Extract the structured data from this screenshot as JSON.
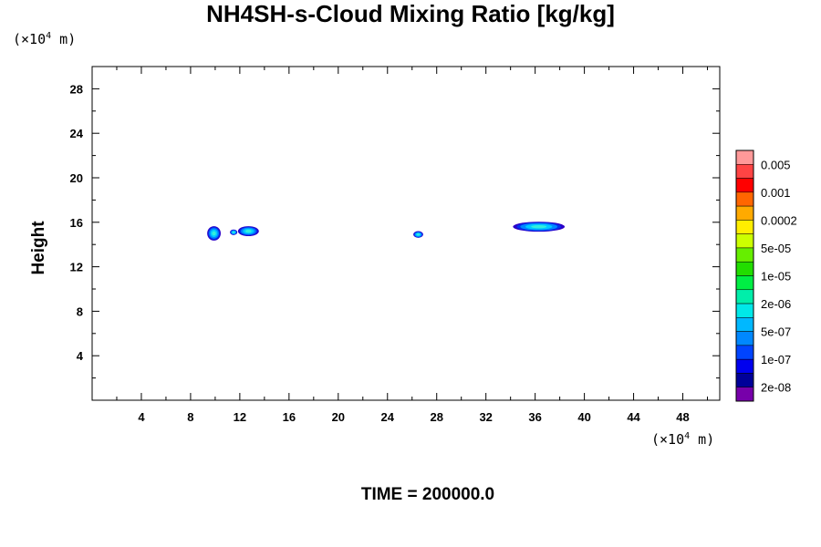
{
  "chart_data": {
    "type": "contour",
    "title": "NH4SH-s-Cloud Mixing Ratio [kg/kg]",
    "ylabel": "Height",
    "x_unit_prefix": "(×10",
    "x_unit_exp": "4",
    "x_unit_suffix": " m)",
    "y_unit_prefix": "(×10",
    "y_unit_exp": "4",
    "y_unit_suffix": " m)",
    "footer": "TIME = 200000.0",
    "xlim": [
      0,
      51
    ],
    "ylim": [
      0,
      30
    ],
    "x_ticks": [
      4,
      8,
      12,
      16,
      20,
      24,
      28,
      32,
      36,
      40,
      44,
      48
    ],
    "y_ticks": [
      4,
      8,
      12,
      16,
      20,
      24,
      28
    ],
    "colorbar": {
      "colors": [
        "#ff9999",
        "#ff4444",
        "#ff0000",
        "#ff6600",
        "#ffaa00",
        "#ffee00",
        "#ccff00",
        "#66ee00",
        "#22dd00",
        "#00ee44",
        "#00eeaa",
        "#00e8e8",
        "#00b8ff",
        "#0088ff",
        "#0044ff",
        "#0000ee",
        "#000099",
        "#7700aa"
      ],
      "labels": [
        "0.005",
        "0.001",
        "0.0002",
        "5e-05",
        "1e-05",
        "2e-06",
        "5e-07",
        "1e-07",
        "2e-08"
      ]
    },
    "cloud_blobs": [
      {
        "x_center": 9.9,
        "y_center": 15.0,
        "x_halfwidth": 0.55,
        "y_halfheight": 0.65
      },
      {
        "x_center": 11.5,
        "y_center": 15.1,
        "x_halfwidth": 0.3,
        "y_halfheight": 0.25
      },
      {
        "x_center": 12.7,
        "y_center": 15.2,
        "x_halfwidth": 0.85,
        "y_halfheight": 0.45
      },
      {
        "x_center": 26.5,
        "y_center": 14.9,
        "x_halfwidth": 0.4,
        "y_halfheight": 0.3
      },
      {
        "x_center": 36.3,
        "y_center": 15.6,
        "x_halfwidth": 2.1,
        "y_halfheight": 0.45
      }
    ]
  }
}
